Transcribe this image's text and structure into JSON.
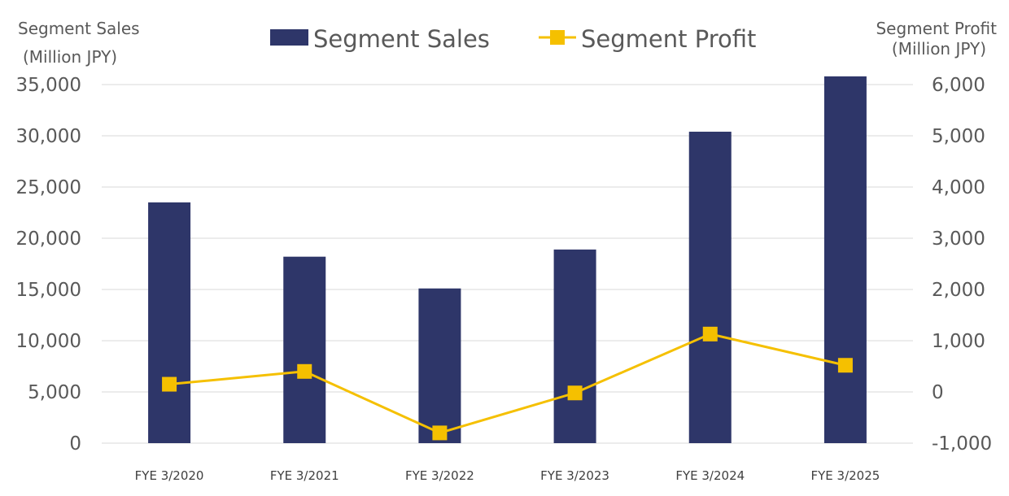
{
  "chart_data": {
    "type": "bar+line",
    "categories": [
      "FYE 3/2020",
      "FYE 3/2021",
      "FYE 3/2022",
      "FYE 3/2023",
      "FYE 3/2024",
      "FYE 3/2025"
    ],
    "series": [
      {
        "name": "Segment Sales",
        "type": "bar",
        "axis": "left",
        "color": "#2e3669",
        "values": [
          23500,
          18200,
          15100,
          18900,
          30400,
          35800
        ]
      },
      {
        "name": "Segment Profit",
        "type": "line",
        "axis": "right",
        "color": "#f5c000",
        "values": [
          150,
          400,
          -800,
          -20,
          1130,
          520
        ]
      }
    ],
    "left_axis": {
      "title_line1": "Segment Sales",
      "title_line2": "(Million JPY)",
      "min": 0,
      "max": 35000,
      "step": 5000,
      "tick_labels": [
        "0",
        "5,000",
        "10,000",
        "15,000",
        "20,000",
        "25,000",
        "30,000",
        "35,000"
      ]
    },
    "right_axis": {
      "title_line1": "Segment Profit",
      "title_line2": "(Million JPY)",
      "min": -1000,
      "max": 6000,
      "step": 1000,
      "tick_labels": [
        "-1,000",
        "0",
        "1,000",
        "2,000",
        "3,000",
        "4,000",
        "5,000",
        "6,000"
      ]
    },
    "legend": {
      "placement": "top-center",
      "items": [
        "Segment Sales",
        "Segment Profit"
      ]
    },
    "grid": true
  }
}
